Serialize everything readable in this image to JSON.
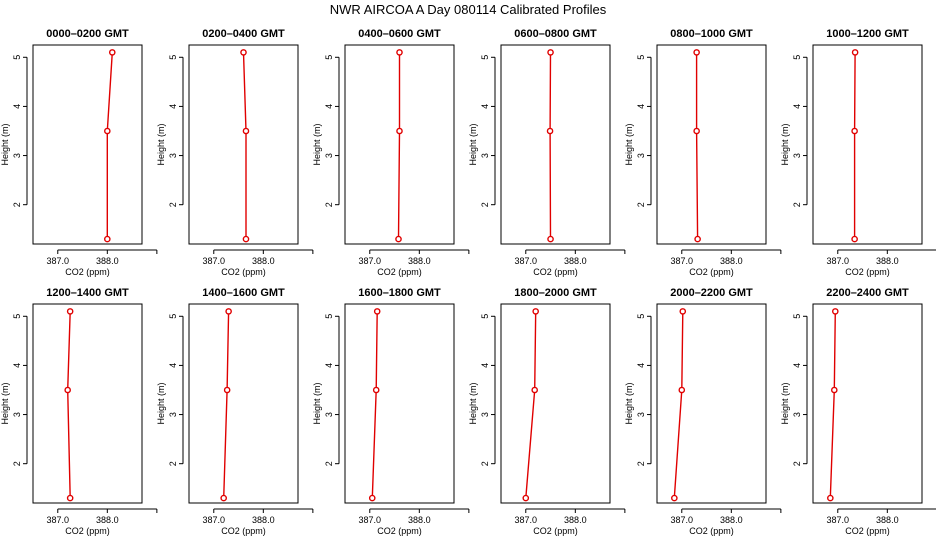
{
  "title": "NWR AIRCOA A  Day 080114  Calibrated Profiles",
  "chart_data": [
    {
      "type": "line",
      "title": "0000–0200 GMT",
      "xlabel": "CO2 (ppm)",
      "ylabel": "Height (m)",
      "xlim": [
        386.5,
        388.7
      ],
      "ylim": [
        1.2,
        5.25
      ],
      "xticks": [
        "387.0",
        "388.0"
      ],
      "yticks": [
        "2",
        "3",
        "4",
        "5"
      ],
      "grid": false,
      "series": [
        {
          "x": [
            388.1,
            388.0,
            388.0
          ],
          "y": [
            5.1,
            3.5,
            1.3
          ]
        }
      ]
    },
    {
      "type": "line",
      "title": "0200–0400 GMT",
      "xlabel": "CO2 (ppm)",
      "ylabel": "Height (m)",
      "xlim": [
        386.5,
        388.7
      ],
      "ylim": [
        1.2,
        5.25
      ],
      "xticks": [
        "387.0",
        "388.0"
      ],
      "yticks": [
        "2",
        "3",
        "4",
        "5"
      ],
      "grid": false,
      "series": [
        {
          "x": [
            387.6,
            387.65,
            387.65
          ],
          "y": [
            5.1,
            3.5,
            1.3
          ]
        }
      ]
    },
    {
      "type": "line",
      "title": "0400–0600 GMT",
      "xlabel": "CO2 (ppm)",
      "ylabel": "Height (m)",
      "xlim": [
        386.5,
        388.7
      ],
      "ylim": [
        1.2,
        5.25
      ],
      "xticks": [
        "387.0",
        "388.0"
      ],
      "yticks": [
        "2",
        "3",
        "4",
        "5"
      ],
      "grid": false,
      "series": [
        {
          "x": [
            387.6,
            387.6,
            387.58
          ],
          "y": [
            5.1,
            3.5,
            1.3
          ]
        }
      ]
    },
    {
      "type": "line",
      "title": "0600–0800 GMT",
      "xlabel": "CO2 (ppm)",
      "ylabel": "Height (m)",
      "xlim": [
        386.5,
        388.7
      ],
      "ylim": [
        1.2,
        5.25
      ],
      "xticks": [
        "387.0",
        "388.0"
      ],
      "yticks": [
        "2",
        "3",
        "4",
        "5"
      ],
      "grid": false,
      "series": [
        {
          "x": [
            387.5,
            387.49,
            387.5
          ],
          "y": [
            5.1,
            3.5,
            1.3
          ]
        }
      ]
    },
    {
      "type": "line",
      "title": "0800–1000 GMT",
      "xlabel": "CO2 (ppm)",
      "ylabel": "Height (m)",
      "xlim": [
        386.5,
        388.7
      ],
      "ylim": [
        1.2,
        5.25
      ],
      "xticks": [
        "387.0",
        "388.0"
      ],
      "yticks": [
        "2",
        "3",
        "4",
        "5"
      ],
      "grid": false,
      "series": [
        {
          "x": [
            387.3,
            387.3,
            387.32
          ],
          "y": [
            5.1,
            3.5,
            1.3
          ]
        }
      ]
    },
    {
      "type": "line",
      "title": "1000–1200 GMT",
      "xlabel": "CO2 (ppm)",
      "ylabel": "Height (m)",
      "xlim": [
        386.5,
        388.7
      ],
      "ylim": [
        1.2,
        5.25
      ],
      "xticks": [
        "387.0",
        "388.0"
      ],
      "yticks": [
        "2",
        "3",
        "4",
        "5"
      ],
      "grid": false,
      "series": [
        {
          "x": [
            387.35,
            387.34,
            387.34
          ],
          "y": [
            5.1,
            3.5,
            1.3
          ]
        }
      ]
    },
    {
      "type": "line",
      "title": "1200–1400 GMT",
      "xlabel": "CO2 (ppm)",
      "ylabel": "Height (m)",
      "xlim": [
        386.5,
        388.7
      ],
      "ylim": [
        1.2,
        5.25
      ],
      "xticks": [
        "387.0",
        "388.0"
      ],
      "yticks": [
        "2",
        "3",
        "4",
        "5"
      ],
      "grid": false,
      "series": [
        {
          "x": [
            387.25,
            387.2,
            387.25
          ],
          "y": [
            5.1,
            3.5,
            1.3
          ]
        }
      ]
    },
    {
      "type": "line",
      "title": "1400–1600 GMT",
      "xlabel": "CO2 (ppm)",
      "ylabel": "Height (m)",
      "xlim": [
        386.5,
        388.7
      ],
      "ylim": [
        1.2,
        5.25
      ],
      "xticks": [
        "387.0",
        "388.0"
      ],
      "yticks": [
        "2",
        "3",
        "4",
        "5"
      ],
      "grid": false,
      "series": [
        {
          "x": [
            387.3,
            387.27,
            387.2
          ],
          "y": [
            5.1,
            3.5,
            1.3
          ]
        }
      ]
    },
    {
      "type": "line",
      "title": "1600–1800 GMT",
      "xlabel": "CO2 (ppm)",
      "ylabel": "Height (m)",
      "xlim": [
        386.5,
        388.7
      ],
      "ylim": [
        1.2,
        5.25
      ],
      "xticks": [
        "387.0",
        "388.0"
      ],
      "yticks": [
        "2",
        "3",
        "4",
        "5"
      ],
      "grid": false,
      "series": [
        {
          "x": [
            387.15,
            387.13,
            387.05
          ],
          "y": [
            5.1,
            3.5,
            1.3
          ]
        }
      ]
    },
    {
      "type": "line",
      "title": "1800–2000 GMT",
      "xlabel": "CO2 (ppm)",
      "ylabel": "Height (m)",
      "xlim": [
        386.5,
        388.7
      ],
      "ylim": [
        1.2,
        5.25
      ],
      "xticks": [
        "387.0",
        "388.0"
      ],
      "yticks": [
        "2",
        "3",
        "4",
        "5"
      ],
      "grid": false,
      "series": [
        {
          "x": [
            387.2,
            387.18,
            387.0
          ],
          "y": [
            5.1,
            3.5,
            1.3
          ]
        }
      ]
    },
    {
      "type": "line",
      "title": "2000–2200 GMT",
      "xlabel": "CO2 (ppm)",
      "ylabel": "Height (m)",
      "xlim": [
        386.5,
        388.7
      ],
      "ylim": [
        1.2,
        5.25
      ],
      "xticks": [
        "387.0",
        "388.0"
      ],
      "yticks": [
        "2",
        "3",
        "4",
        "5"
      ],
      "grid": false,
      "series": [
        {
          "x": [
            387.02,
            387.0,
            386.85
          ],
          "y": [
            5.1,
            3.5,
            1.3
          ]
        }
      ]
    },
    {
      "type": "line",
      "title": "2200–2400 GMT",
      "xlabel": "CO2 (ppm)",
      "ylabel": "Height (m)",
      "xlim": [
        386.5,
        388.7
      ],
      "ylim": [
        1.2,
        5.25
      ],
      "xticks": [
        "387.0",
        "388.0"
      ],
      "yticks": [
        "2",
        "3",
        "4",
        "5"
      ],
      "grid": false,
      "series": [
        {
          "x": [
            386.95,
            386.93,
            386.85
          ],
          "y": [
            5.1,
            3.5,
            1.3
          ]
        }
      ]
    }
  ]
}
